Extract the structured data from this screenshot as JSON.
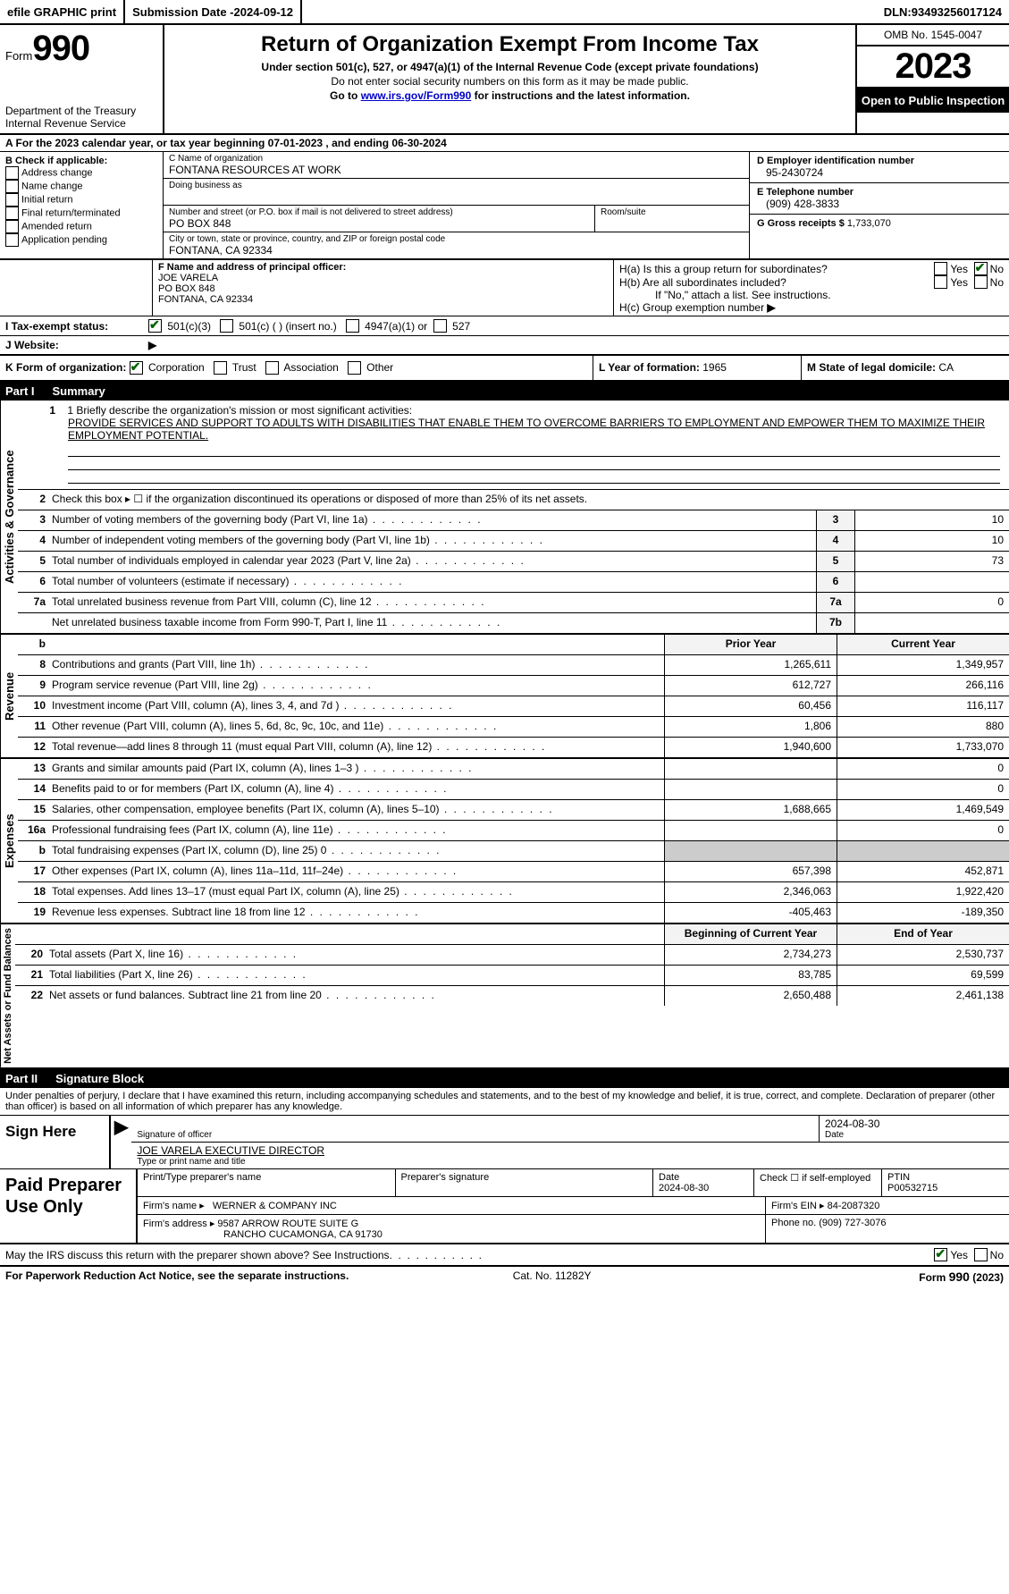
{
  "colors": {
    "text": "#000000",
    "bg": "#ffffff",
    "darkbg": "#000000",
    "shaded": "#cccccc",
    "check_green": "#006400",
    "link": "#0000cc"
  },
  "topbar": {
    "efile": "efile GRAPHIC print",
    "submission_label": "Submission Date - ",
    "submission_date": "2024-09-12",
    "dln_label": "DLN: ",
    "dln": "93493256017124"
  },
  "header": {
    "form_word": "Form",
    "form_num": "990",
    "title": "Return of Organization Exempt From Income Tax",
    "sub1": "Under section 501(c), 527, or 4947(a)(1) of the Internal Revenue Code (except private foundations)",
    "sub2": "Do not enter social security numbers on this form as it may be made public.",
    "sub3_pre": "Go to ",
    "sub3_link": "www.irs.gov/Form990",
    "sub3_post": " for instructions and the latest information.",
    "dept": "Department of the Treasury",
    "irs": "Internal Revenue Service",
    "omb": "OMB No. 1545-0047",
    "year": "2023",
    "inspection": "Open to Public Inspection"
  },
  "line_a": {
    "prefix": "A For the 2023 calendar year, or tax year beginning ",
    "begin": "07-01-2023",
    "mid": " , and ending ",
    "end": "06-30-2024"
  },
  "box_b": {
    "header": "B Check if applicable:",
    "items": [
      "Address change",
      "Name change",
      "Initial return",
      "Final return/terminated",
      "Amended return",
      "Application pending"
    ]
  },
  "box_c": {
    "name_label": "C Name of organization",
    "name": "FONTANA RESOURCES AT WORK",
    "dba_label": "Doing business as",
    "addr_label": "Number and street (or P.O. box if mail is not delivered to street address)",
    "room_label": "Room/suite",
    "addr": "PO BOX 848",
    "city_label": "City or town, state or province, country, and ZIP or foreign postal code",
    "city": "FONTANA, CA  92334"
  },
  "box_d": {
    "ein_label": "D Employer identification number",
    "ein": "95-2430724",
    "phone_label": "E Telephone number",
    "phone": "(909) 428-3833",
    "gross_label": "G Gross receipts $ ",
    "gross": "1,733,070"
  },
  "box_f": {
    "label": "F Name and address of principal officer:",
    "name": "JOE VARELA",
    "addr1": "PO BOX 848",
    "addr2": "FONTANA, CA  92334"
  },
  "box_h": {
    "ha_q": "H(a) Is this a group return for subordinates?",
    "hb_q": "H(b) Are all subordinates included?",
    "hb_note": "If \"No,\" attach a list. See instructions.",
    "hc_label": "H(c) Group exemption number ",
    "yes": "Yes",
    "no": "No"
  },
  "tax_status": {
    "label": "I    Tax-exempt status:",
    "o1": "501(c)(3)",
    "o2": "501(c) (  ) (insert no.)",
    "o3": "4947(a)(1) or",
    "o4": "527"
  },
  "website": {
    "label": "J    Website: ",
    "arrow": "▶"
  },
  "k_row": {
    "label": "K Form of organization: ",
    "opts": [
      "Corporation",
      "Trust",
      "Association",
      "Other"
    ],
    "l_label": "L Year of formation: ",
    "l_val": "1965",
    "m_label": "M State of legal domicile: ",
    "m_val": "CA"
  },
  "part1": {
    "num": "Part I",
    "title": "Summary"
  },
  "mission": {
    "label": "1   Briefly describe the organization's mission or most significant activities:",
    "text": "PROVIDE SERVICES AND SUPPORT TO ADULTS WITH DISABILITIES THAT ENABLE THEM TO OVERCOME BARRIERS TO EMPLOYMENT AND EMPOWER THEM TO MAXIMIZE THEIR EMPLOYMENT POTENTIAL."
  },
  "gov_lines": [
    {
      "n": "2",
      "desc": "Check this box ▸ ☐  if the organization discontinued its operations or disposed of more than 25% of its net assets.",
      "nbox": "",
      "val": ""
    },
    {
      "n": "3",
      "desc": "Number of voting members of the governing body (Part VI, line 1a)",
      "nbox": "3",
      "val": "10"
    },
    {
      "n": "4",
      "desc": "Number of independent voting members of the governing body (Part VI, line 1b)",
      "nbox": "4",
      "val": "10"
    },
    {
      "n": "5",
      "desc": "Total number of individuals employed in calendar year 2023 (Part V, line 2a)",
      "nbox": "5",
      "val": "73"
    },
    {
      "n": "6",
      "desc": "Total number of volunteers (estimate if necessary)",
      "nbox": "6",
      "val": ""
    },
    {
      "n": "7a",
      "desc": "Total unrelated business revenue from Part VIII, column (C), line 12",
      "nbox": "7a",
      "val": "0"
    },
    {
      "n": "",
      "desc": "Net unrelated business taxable income from Form 990-T, Part I, line 11",
      "nbox": "7b",
      "val": ""
    }
  ],
  "rev_header": {
    "prior": "Prior Year",
    "curr": "Current Year",
    "b": "b"
  },
  "rev_lines": [
    {
      "n": "8",
      "desc": "Contributions and grants (Part VIII, line 1h)",
      "prior": "1,265,611",
      "curr": "1,349,957"
    },
    {
      "n": "9",
      "desc": "Program service revenue (Part VIII, line 2g)",
      "prior": "612,727",
      "curr": "266,116"
    },
    {
      "n": "10",
      "desc": "Investment income (Part VIII, column (A), lines 3, 4, and 7d )",
      "prior": "60,456",
      "curr": "116,117"
    },
    {
      "n": "11",
      "desc": "Other revenue (Part VIII, column (A), lines 5, 6d, 8c, 9c, 10c, and 11e)",
      "prior": "1,806",
      "curr": "880"
    },
    {
      "n": "12",
      "desc": "Total revenue—add lines 8 through 11 (must equal Part VIII, column (A), line 12)",
      "prior": "1,940,600",
      "curr": "1,733,070"
    }
  ],
  "exp_lines": [
    {
      "n": "13",
      "desc": "Grants and similar amounts paid (Part IX, column (A), lines 1–3 )",
      "prior": "",
      "curr": "0"
    },
    {
      "n": "14",
      "desc": "Benefits paid to or for members (Part IX, column (A), line 4)",
      "prior": "",
      "curr": "0"
    },
    {
      "n": "15",
      "desc": "Salaries, other compensation, employee benefits (Part IX, column (A), lines 5–10)",
      "prior": "1,688,665",
      "curr": "1,469,549"
    },
    {
      "n": "16a",
      "desc": "Professional fundraising fees (Part IX, column (A), line 11e)",
      "prior": "",
      "curr": "0"
    },
    {
      "n": "b",
      "desc": "Total fundraising expenses (Part IX, column (D), line 25) 0",
      "prior_shaded": true,
      "curr_shaded": true,
      "prior": "",
      "curr": ""
    },
    {
      "n": "17",
      "desc": "Other expenses (Part IX, column (A), lines 11a–11d, 11f–24e)",
      "prior": "657,398",
      "curr": "452,871"
    },
    {
      "n": "18",
      "desc": "Total expenses. Add lines 13–17 (must equal Part IX, column (A), line 25)",
      "prior": "2,346,063",
      "curr": "1,922,420"
    },
    {
      "n": "19",
      "desc": "Revenue less expenses. Subtract line 18 from line 12",
      "prior": "-405,463",
      "curr": "-189,350"
    }
  ],
  "na_header": {
    "prior": "Beginning of Current Year",
    "curr": "End of Year"
  },
  "na_lines": [
    {
      "n": "20",
      "desc": "Total assets (Part X, line 16)",
      "prior": "2,734,273",
      "curr": "2,530,737"
    },
    {
      "n": "21",
      "desc": "Total liabilities (Part X, line 26)",
      "prior": "83,785",
      "curr": "69,599"
    },
    {
      "n": "22",
      "desc": "Net assets or fund balances. Subtract line 21 from line 20",
      "prior": "2,650,488",
      "curr": "2,461,138"
    }
  ],
  "vtabs": {
    "gov": "Activities & Governance",
    "rev": "Revenue",
    "exp": "Expenses",
    "na": "Net Assets or Fund Balances"
  },
  "part2": {
    "num": "Part II",
    "title": "Signature Block"
  },
  "perjury": "Under penalties of perjury, I declare that I have examined this return, including accompanying schedules and statements, and to the best of my knowledge and belief, it is true, correct, and complete. Declaration of preparer (other than officer) is based on all information of which preparer has any knowledge.",
  "sign": {
    "label": "Sign Here",
    "sig_officer": "Signature of officer",
    "date_label": "Date",
    "date": "2024-08-30",
    "name_title": "JOE VARELA  EXECUTIVE DIRECTOR",
    "type_label": "Type or print name and title"
  },
  "paid": {
    "label": "Paid Preparer Use Only",
    "print_label": "Print/Type preparer's name",
    "sig_label": "Preparer's signature",
    "date_label": "Date",
    "date": "2024-08-30",
    "check_label": "Check ☐ if self-employed",
    "ptin_label": "PTIN",
    "ptin": "P00532715",
    "firm_name_label": "Firm's name   ▸",
    "firm_name": "WERNER & COMPANY INC",
    "firm_ein_label": "Firm's EIN ▸",
    "firm_ein": "84-2087320",
    "firm_addr_label": "Firm's address ▸",
    "firm_addr1": "9587 ARROW ROUTE SUITE G",
    "firm_addr2": "RANCHO CUCAMONGA, CA  91730",
    "phone_label": "Phone no. ",
    "phone": "(909) 727-3076"
  },
  "discuss": {
    "q": "May the IRS discuss this return with the preparer shown above? See Instructions.",
    "yes": "Yes",
    "no": "No"
  },
  "footer": {
    "left": "For Paperwork Reduction Act Notice, see the separate instructions.",
    "cat": "Cat. No. 11282Y",
    "form": "Form 990 (2023)"
  }
}
